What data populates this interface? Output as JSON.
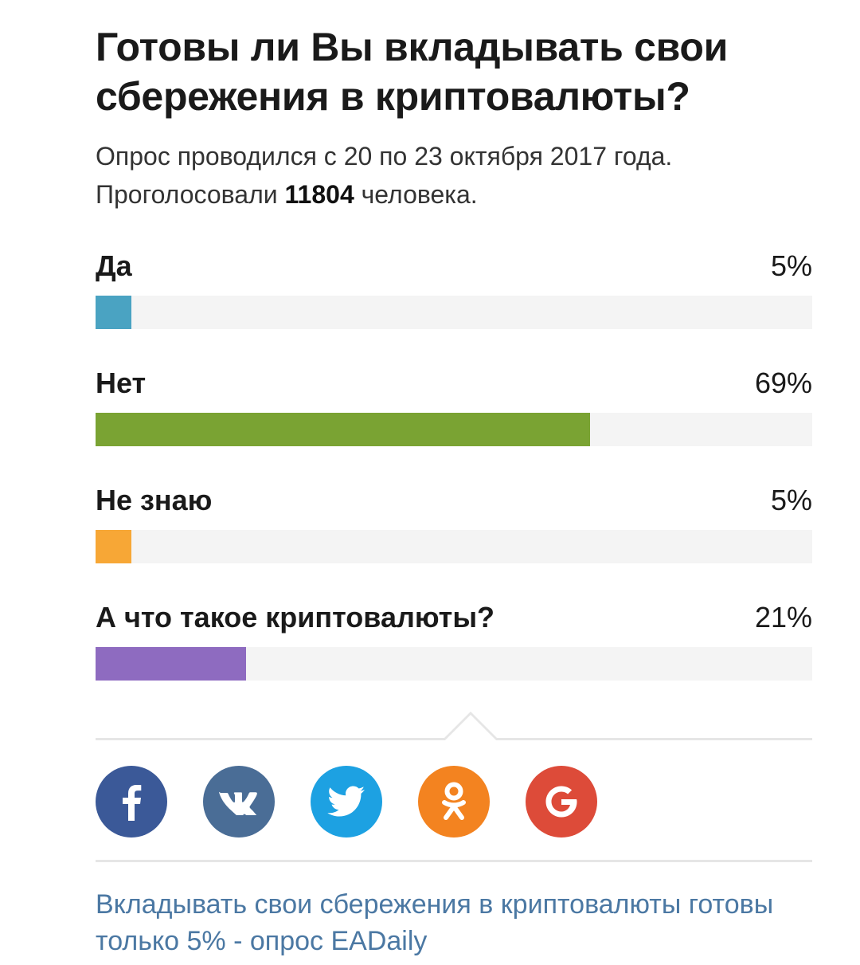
{
  "poll": {
    "title": "Готовы ли Вы вкладывать свои сбережения в криптовалюты?",
    "subtitle_line1": "Опрос проводился с 20 по 23 октября 2017 года.",
    "subtitle_prefix": "Проголосовали ",
    "votes": "11804",
    "subtitle_suffix": " человека.",
    "options": [
      {
        "label": "Да",
        "percent_text": "5%",
        "value": 5,
        "color": "#4aa3c2"
      },
      {
        "label": "Нет",
        "percent_text": "69%",
        "value": 69,
        "color": "#7aa333"
      },
      {
        "label": "Не знаю",
        "percent_text": "5%",
        "value": 5,
        "color": "#f7a736"
      },
      {
        "label": "А что такое криптовалюты?",
        "percent_text": "21%",
        "value": 21,
        "color": "#8e6bc0"
      }
    ]
  },
  "share": {
    "buttons": [
      {
        "icon": "facebook-icon",
        "color": "#3b5998"
      },
      {
        "icon": "vk-icon",
        "color": "#4a6d96"
      },
      {
        "icon": "twitter-icon",
        "color": "#1da1e2"
      },
      {
        "icon": "odnoklassniki-icon",
        "color": "#f38320"
      },
      {
        "icon": "google-icon",
        "color": "#dd4b39"
      }
    ]
  },
  "footer": {
    "link_text": "Вкладывать свои сбережения в криптовалюты готовы только 5% - опрос EADaily"
  }
}
